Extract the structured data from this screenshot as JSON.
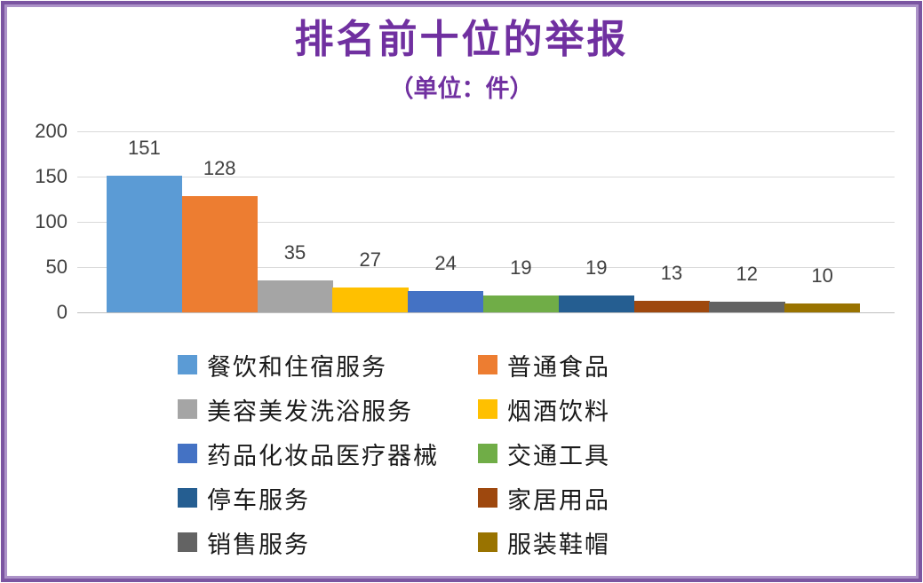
{
  "frame": {
    "outer_border_color": "#7B55A1",
    "inner_border_color": "#AC93C8"
  },
  "title_color": "#7030A0",
  "chart_data": {
    "type": "bar",
    "title": "排名前十位的举报",
    "subtitle": "（单位：件）",
    "xlabel": "",
    "ylabel": "",
    "ylim": [
      0,
      200
    ],
    "yticks": [
      0,
      50,
      100,
      150,
      200
    ],
    "grid": true,
    "gridline_color": "#D9D9D9",
    "value_label_color": "#404040",
    "legend_position": "bottom",
    "legend_columns": 2,
    "series": [
      {
        "name": "餐饮和住宿服务",
        "value": 151,
        "color": "#5B9BD5"
      },
      {
        "name": "普通食品",
        "value": 128,
        "color": "#ED7D31"
      },
      {
        "name": "美容美发洗浴服务",
        "value": 35,
        "color": "#A5A5A5"
      },
      {
        "name": "烟酒饮料",
        "value": 27,
        "color": "#FFC000"
      },
      {
        "name": "药品化妆品医疗器械",
        "value": 24,
        "color": "#4472C4"
      },
      {
        "name": "交通工具",
        "value": 19,
        "color": "#70AD47"
      },
      {
        "name": "停车服务",
        "value": 19,
        "color": "#255E91"
      },
      {
        "name": "家居用品",
        "value": 13,
        "color": "#9E480E"
      },
      {
        "name": "销售服务",
        "value": 12,
        "color": "#636363"
      },
      {
        "name": "服装鞋帽",
        "value": 10,
        "color": "#997300"
      }
    ]
  }
}
